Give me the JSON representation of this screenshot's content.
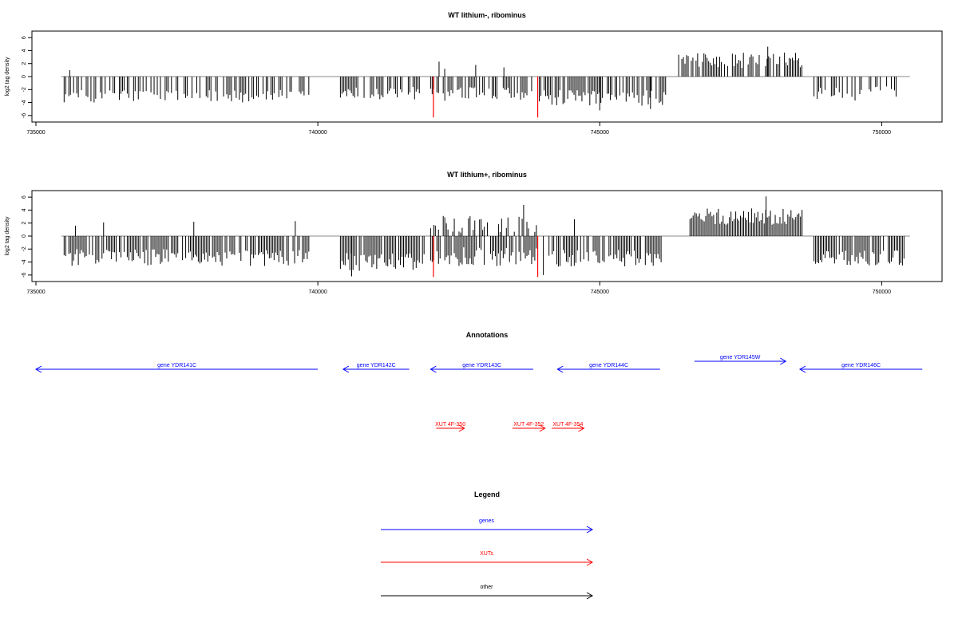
{
  "colors": {
    "gene": "#0000ff",
    "xut": "#ff0000",
    "other": "#000000",
    "bar": "#000000",
    "marker": "#ff0000",
    "baseline": "#888888"
  },
  "chart_data": [
    {
      "type": "bar",
      "title": "WT lithium-, ribominus",
      "ylabel": "log2 tag density",
      "xlabel": "",
      "xlim": [
        735000,
        751000
      ],
      "ylim": [
        -7,
        7
      ],
      "xticks": [
        "735000",
        "740000",
        "745000",
        "750000"
      ],
      "yticks": [
        "6",
        "4",
        "2",
        "0",
        "-2",
        "-4",
        "-6"
      ],
      "markers_x": [
        742050,
        743900
      ],
      "segments": [
        {
          "start": 735500,
          "end": 739900,
          "mean": -3.0,
          "amp": 1.0,
          "density": 0.55
        },
        {
          "start": 740400,
          "end": 741900,
          "mean": -2.6,
          "amp": 1.0,
          "density": 0.6
        },
        {
          "start": 742000,
          "end": 743800,
          "mean": -2.7,
          "amp": 1.1,
          "density": 0.65
        },
        {
          "start": 743900,
          "end": 746200,
          "mean": -3.3,
          "amp": 1.2,
          "density": 0.8
        },
        {
          "start": 746400,
          "end": 748600,
          "mean": 2.5,
          "amp": 1.2,
          "density": 0.7
        },
        {
          "start": 748800,
          "end": 750300,
          "mean": -2.6,
          "amp": 1.1,
          "density": 0.55
        }
      ],
      "spikes": [
        [
          735600,
          1.0
        ],
        [
          742150,
          2.3
        ],
        [
          742250,
          1.2
        ],
        [
          742800,
          1.8
        ],
        [
          743300,
          1.4
        ],
        [
          747980,
          4.6
        ],
        [
          745000,
          -5.2
        ],
        [
          745900,
          -5.0
        ]
      ],
      "baseline_range": [
        735450,
        750500
      ]
    },
    {
      "type": "bar",
      "title": "WT lithium+, ribominus",
      "ylabel": "log2 tag density",
      "xlabel": "",
      "xlim": [
        735000,
        751000
      ],
      "ylim": [
        -7,
        7
      ],
      "xticks": [
        "735000",
        "740000",
        "745000",
        "750000"
      ],
      "yticks": [
        "6",
        "4",
        "2",
        "0",
        "-2",
        "-4",
        "-6"
      ],
      "markers_x": [
        742050,
        743900
      ],
      "segments": [
        {
          "start": 735500,
          "end": 739900,
          "mean": -3.3,
          "amp": 1.3,
          "density": 0.8
        },
        {
          "start": 740400,
          "end": 741900,
          "mean": -4.0,
          "amp": 1.4,
          "density": 0.95
        },
        {
          "start": 742000,
          "end": 743900,
          "mean": -3.2,
          "amp": 1.5,
          "density": 0.85
        },
        {
          "start": 742000,
          "end": 743900,
          "mean": 1.8,
          "amp": 1.3,
          "density": 0.55
        },
        {
          "start": 744100,
          "end": 746100,
          "mean": -3.4,
          "amp": 1.3,
          "density": 0.85
        },
        {
          "start": 746600,
          "end": 748600,
          "mean": 3.0,
          "amp": 1.3,
          "density": 0.95
        },
        {
          "start": 748800,
          "end": 750400,
          "mean": -3.4,
          "amp": 1.2,
          "density": 0.85
        }
      ],
      "spikes": [
        [
          735700,
          1.6
        ],
        [
          736200,
          2.1
        ],
        [
          737800,
          2.2
        ],
        [
          739600,
          2.3
        ],
        [
          743650,
          4.8
        ],
        [
          744550,
          2.6
        ],
        [
          747950,
          6.1
        ],
        [
          744000,
          -6.0
        ],
        [
          740600,
          -6.2
        ]
      ],
      "baseline_range": [
        735450,
        750500
      ]
    }
  ],
  "annotations": {
    "title": "Annotations",
    "genes": [
      {
        "label": "gene YDR141C",
        "start": 735000,
        "end": 740000,
        "dir": "left",
        "row": 0
      },
      {
        "label": "gene YDR142C",
        "start": 740450,
        "end": 741620,
        "dir": "left",
        "row": 0
      },
      {
        "label": "gene YDR143C",
        "start": 742000,
        "end": 743820,
        "dir": "left",
        "row": 0
      },
      {
        "label": "gene YDR144C",
        "start": 744250,
        "end": 746070,
        "dir": "left",
        "row": 0
      },
      {
        "label": "gene YDR145W",
        "start": 746680,
        "end": 748300,
        "dir": "right",
        "row": 1
      },
      {
        "label": "gene YDR146C",
        "start": 748550,
        "end": 750720,
        "dir": "left",
        "row": 0
      }
    ],
    "xuts": [
      {
        "label": "XUT 4F-350",
        "start": 742100,
        "end": 742600,
        "dir": "right"
      },
      {
        "label": "XUT 4F-352",
        "start": 743450,
        "end": 744030,
        "dir": "right"
      },
      {
        "label": "XUT 4F-354",
        "start": 744150,
        "end": 744720,
        "dir": "right"
      }
    ]
  },
  "legend": {
    "title": "Legend",
    "items": [
      {
        "label": "genes",
        "color": "#0000ff"
      },
      {
        "label": "XUTs",
        "color": "#ff0000"
      },
      {
        "label": "other",
        "color": "#000000"
      }
    ]
  }
}
